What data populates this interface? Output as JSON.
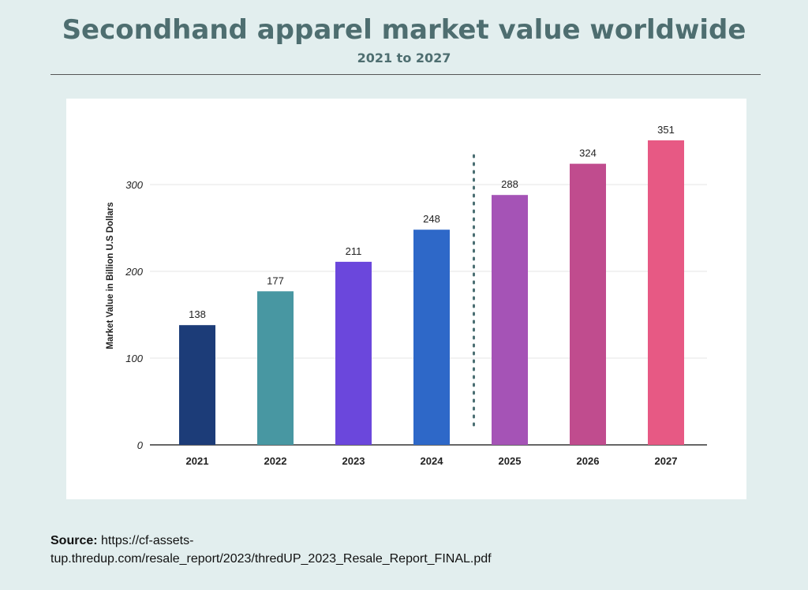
{
  "header": {
    "title": "Secondhand apparel market value worldwide",
    "subtitle": "2021 to 2027"
  },
  "source": {
    "label": "Source:",
    "url_line1": "https://cf-assets-",
    "url_line2": "tup.thredup.com/resale_report/2023/thredUP_2023_Resale_Report_FINAL.pdf"
  },
  "chart_data": {
    "type": "bar",
    "ylabel": "Market Value in Billion U.S Dollars",
    "xlabel": "",
    "categories": [
      "2021",
      "2022",
      "2023",
      "2024",
      "2025",
      "2026",
      "2027"
    ],
    "values": [
      138,
      177,
      211,
      248,
      288,
      324,
      351
    ],
    "colors": [
      "#1c3c78",
      "#4897a2",
      "#6b47dc",
      "#2e68c8",
      "#a553b6",
      "#c04c8e",
      "#e75984"
    ],
    "yticks": [
      0,
      100,
      200,
      300
    ],
    "ylim": [
      0,
      360
    ],
    "grid": true,
    "forecast_divider_after": "2024"
  }
}
